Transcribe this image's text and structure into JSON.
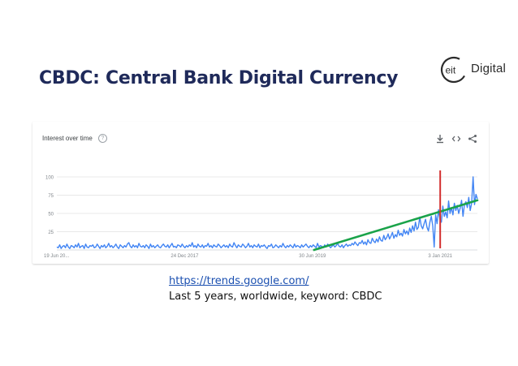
{
  "slide": {
    "title": "CBDC: Central Bank Digital Currency",
    "logo_text": "Digital",
    "logo_mark": "eit",
    "source_url": "https://trends.google.com/",
    "caption": "Last 5 years, worldwide, keyword: CBDC"
  },
  "colors": {
    "title": "#1f2a5a",
    "series": "#4285f4",
    "trend": "#1aa34a",
    "marker": "#d32f2f",
    "grid": "#e8e8e8"
  },
  "icons": [
    "help-icon",
    "download-icon",
    "embed-icon",
    "share-icon"
  ],
  "chart_data": {
    "type": "line",
    "title": "Interest over time",
    "xlabel": "",
    "ylabel": "",
    "ylim": [
      0,
      100
    ],
    "y_ticks": [
      25,
      50,
      75,
      100
    ],
    "x_tick_labels": [
      {
        "label": "19 Jun 20...",
        "x": "2016-06-19"
      },
      {
        "label": "24 Dec 2017",
        "x": "2017-12-24"
      },
      {
        "label": "30 Jun 2019",
        "x": "2019-06-30"
      },
      {
        "label": "3 Jan 2021",
        "x": "2021-01-03"
      }
    ],
    "x_range": [
      "2016-06-19",
      "2021-06-13"
    ],
    "grid": true,
    "series": [
      {
        "values": [
          4,
          3,
          7,
          2,
          5,
          6,
          3,
          8,
          4,
          2,
          6,
          5,
          3,
          7,
          4,
          9,
          3,
          5,
          6,
          2,
          8,
          4,
          3,
          6,
          5,
          7,
          3,
          4,
          8,
          5,
          2,
          6,
          4,
          7,
          3,
          5,
          9,
          4,
          6,
          3,
          5,
          8,
          4,
          2,
          7,
          5,
          3,
          6,
          4,
          8,
          10,
          5,
          3,
          7,
          4,
          6,
          3,
          9,
          5,
          4,
          6,
          3,
          7,
          5,
          2,
          8,
          4,
          6,
          3,
          5,
          7,
          4,
          3,
          6,
          8,
          5,
          4,
          7,
          3,
          6,
          9,
          4,
          5,
          3,
          7,
          6,
          4,
          8,
          5,
          3,
          6,
          4,
          7,
          5,
          10,
          4,
          6,
          3,
          8,
          5,
          4,
          7,
          3,
          6,
          5,
          9,
          4,
          6,
          3,
          7,
          5,
          4,
          8,
          6,
          3,
          5,
          7,
          4,
          6,
          3,
          8,
          5,
          4,
          10,
          6,
          3,
          7,
          5,
          4,
          8,
          6,
          3,
          5,
          9,
          4,
          6,
          3,
          7,
          5,
          4,
          8,
          3,
          6,
          5,
          7,
          4,
          2,
          6,
          5,
          8,
          3,
          4,
          7,
          5,
          3,
          6,
          4,
          9,
          5,
          3,
          6,
          4,
          7,
          5,
          3,
          8,
          4,
          6,
          5,
          3,
          7,
          4,
          6,
          8,
          5,
          3,
          6,
          4,
          7,
          5,
          3,
          9,
          4,
          6,
          5,
          3,
          7,
          4,
          8,
          6,
          3,
          5,
          7,
          4,
          6,
          9,
          5,
          4,
          7,
          3,
          6,
          8,
          5,
          7,
          6,
          9,
          7,
          11,
          8,
          6,
          10,
          9,
          13,
          8,
          11,
          7,
          14,
          10,
          9,
          16,
          12,
          10,
          15,
          11,
          18,
          13,
          12,
          20,
          14,
          17,
          22,
          15,
          19,
          24,
          16,
          21,
          18,
          27,
          20,
          23,
          19,
          28,
          22,
          26,
          21,
          30,
          24,
          33,
          26,
          38,
          28,
          31,
          45,
          33,
          29,
          36,
          42,
          31,
          26,
          38,
          46,
          33,
          4,
          48,
          36,
          55,
          42,
          38,
          60,
          46,
          52,
          44,
          67,
          50,
          58,
          48,
          64,
          54,
          61,
          50,
          57,
          68,
          46,
          62,
          66,
          58,
          72,
          54,
          64,
          100,
          62,
          76,
          70
        ]
      }
    ],
    "trend_line": {
      "from": {
        "x": "2019-07-07",
        "y": 0
      },
      "to": {
        "x": "2021-06-13",
        "y": 68
      }
    },
    "marker_line": {
      "x": "2021-01-03"
    }
  }
}
